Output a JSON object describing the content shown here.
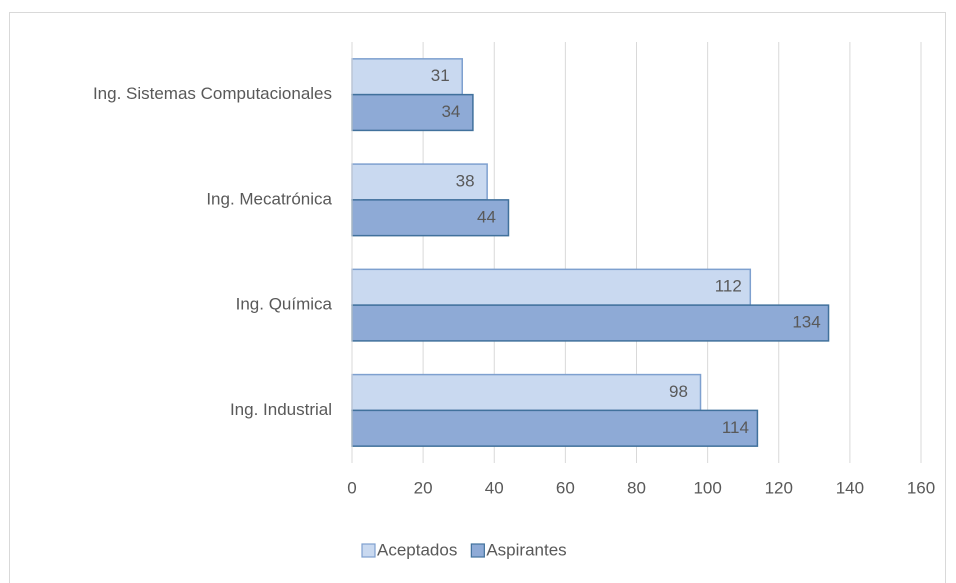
{
  "chart_data": {
    "type": "bar",
    "orientation": "horizontal",
    "categories": [
      "Ing. Sistemas Computacionales",
      "Ing. Mecatrónica",
      "Ing. Química",
      "Ing. Industrial"
    ],
    "series": [
      {
        "name": "Aceptados",
        "color": "#c9d9f0",
        "values": [
          31,
          38,
          112,
          98
        ]
      },
      {
        "name": "Aspirantes",
        "color": "#8eaad6",
        "values": [
          34,
          44,
          134,
          114
        ]
      }
    ],
    "xlim": [
      0,
      160
    ],
    "xticks": [
      0,
      20,
      40,
      60,
      80,
      100,
      120,
      140,
      160
    ],
    "grid": true,
    "legend": "bottom"
  }
}
